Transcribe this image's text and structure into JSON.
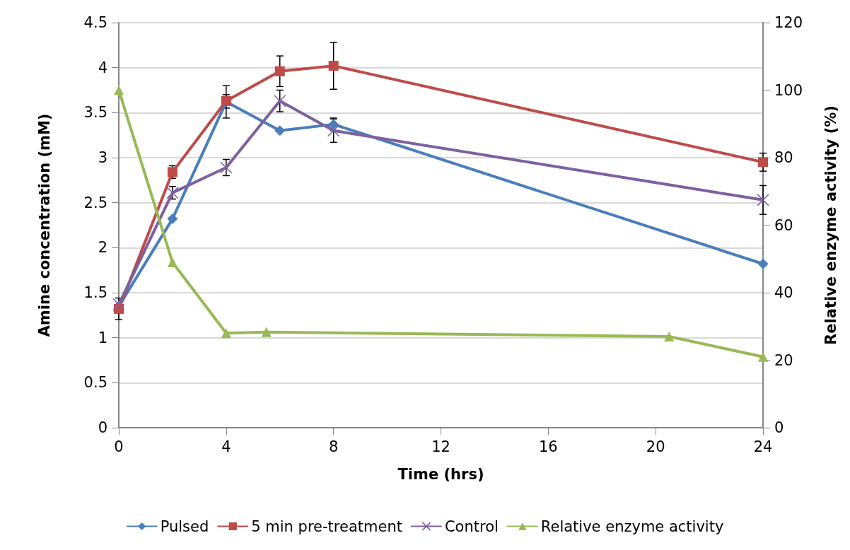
{
  "chart_data": {
    "type": "line",
    "xlabel": "Time (hrs)",
    "ylabel": "Amine concentration (mM)",
    "y2label": "Relative enzyme activity (%)",
    "xlim": [
      0,
      24
    ],
    "xticks": [
      0,
      4,
      8,
      12,
      16,
      20,
      24
    ],
    "ylim": [
      0,
      4.5
    ],
    "yticks": [
      0,
      0.5,
      1,
      1.5,
      2,
      2.5,
      3,
      3.5,
      4,
      4.5
    ],
    "y2lim": [
      0,
      120
    ],
    "y2ticks": [
      0,
      20,
      40,
      60,
      80,
      100,
      120
    ],
    "grid": "y",
    "legend": "bottom",
    "line_style": "solid",
    "series": [
      {
        "name": "Pulsed",
        "color": "#4a7ebb",
        "marker": "diamond",
        "x": [
          0,
          2,
          4,
          6,
          8,
          24
        ],
        "values": [
          1.35,
          2.32,
          3.62,
          3.3,
          3.37,
          1.82
        ],
        "errors": [
          null,
          null,
          [
            3.44,
            3.7
          ],
          null,
          0.07,
          null
        ]
      },
      {
        "name": "5 min pre-treatment",
        "color": "#be4b48",
        "marker": "square",
        "x": [
          0,
          2,
          4,
          6,
          8,
          24
        ],
        "values": [
          1.32,
          2.84,
          3.63,
          3.96,
          4.02,
          2.95
        ],
        "errors": [
          0.12,
          0.07,
          [
            3.55,
            3.8
          ],
          0.17,
          0.26,
          0.1
        ]
      },
      {
        "name": "Control",
        "color": "#7d60a0",
        "marker": "cross",
        "x": [
          0,
          2,
          4,
          6,
          8,
          24
        ],
        "values": [
          1.37,
          2.61,
          2.89,
          3.63,
          3.3,
          2.53
        ],
        "errors": [
          null,
          0.07,
          0.09,
          0.12,
          0.13,
          0.16
        ]
      },
      {
        "name": "Relative enzyme activity",
        "color": "#98b954",
        "marker": "triangle",
        "axis": "y2",
        "x": [
          0,
          2,
          4,
          5.5,
          20.5,
          24
        ],
        "values": [
          100,
          49,
          28,
          28.3,
          27,
          21
        ]
      }
    ]
  }
}
